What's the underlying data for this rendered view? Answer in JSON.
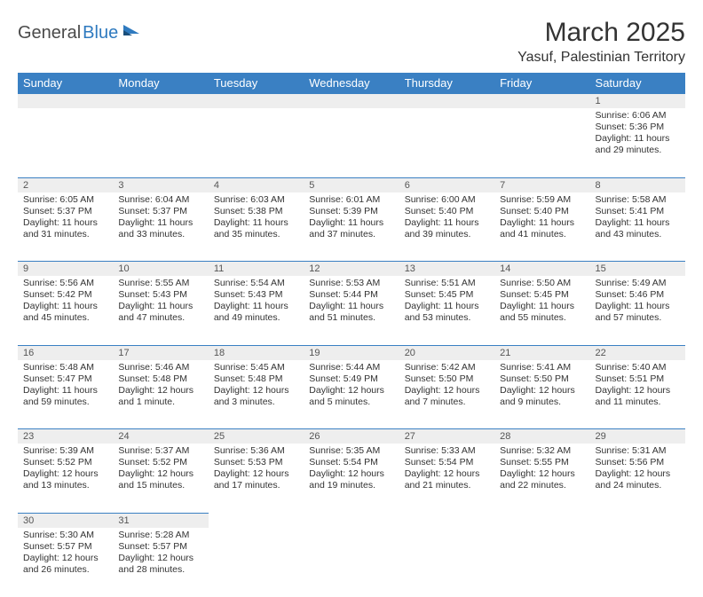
{
  "logo": {
    "dark": "General",
    "blue": "Blue"
  },
  "title": "March 2025",
  "location": "Yasuf, Palestinian Territory",
  "header_bg": "#3a80c3",
  "weekdays": [
    "Sunday",
    "Monday",
    "Tuesday",
    "Wednesday",
    "Thursday",
    "Friday",
    "Saturday"
  ],
  "weeks": [
    [
      null,
      null,
      null,
      null,
      null,
      null,
      {
        "n": "1",
        "sr": "6:06 AM",
        "ss": "5:36 PM",
        "dl": "11 hours and 29 minutes."
      }
    ],
    [
      {
        "n": "2",
        "sr": "6:05 AM",
        "ss": "5:37 PM",
        "dl": "11 hours and 31 minutes."
      },
      {
        "n": "3",
        "sr": "6:04 AM",
        "ss": "5:37 PM",
        "dl": "11 hours and 33 minutes."
      },
      {
        "n": "4",
        "sr": "6:03 AM",
        "ss": "5:38 PM",
        "dl": "11 hours and 35 minutes."
      },
      {
        "n": "5",
        "sr": "6:01 AM",
        "ss": "5:39 PM",
        "dl": "11 hours and 37 minutes."
      },
      {
        "n": "6",
        "sr": "6:00 AM",
        "ss": "5:40 PM",
        "dl": "11 hours and 39 minutes."
      },
      {
        "n": "7",
        "sr": "5:59 AM",
        "ss": "5:40 PM",
        "dl": "11 hours and 41 minutes."
      },
      {
        "n": "8",
        "sr": "5:58 AM",
        "ss": "5:41 PM",
        "dl": "11 hours and 43 minutes."
      }
    ],
    [
      {
        "n": "9",
        "sr": "5:56 AM",
        "ss": "5:42 PM",
        "dl": "11 hours and 45 minutes."
      },
      {
        "n": "10",
        "sr": "5:55 AM",
        "ss": "5:43 PM",
        "dl": "11 hours and 47 minutes."
      },
      {
        "n": "11",
        "sr": "5:54 AM",
        "ss": "5:43 PM",
        "dl": "11 hours and 49 minutes."
      },
      {
        "n": "12",
        "sr": "5:53 AM",
        "ss": "5:44 PM",
        "dl": "11 hours and 51 minutes."
      },
      {
        "n": "13",
        "sr": "5:51 AM",
        "ss": "5:45 PM",
        "dl": "11 hours and 53 minutes."
      },
      {
        "n": "14",
        "sr": "5:50 AM",
        "ss": "5:45 PM",
        "dl": "11 hours and 55 minutes."
      },
      {
        "n": "15",
        "sr": "5:49 AM",
        "ss": "5:46 PM",
        "dl": "11 hours and 57 minutes."
      }
    ],
    [
      {
        "n": "16",
        "sr": "5:48 AM",
        "ss": "5:47 PM",
        "dl": "11 hours and 59 minutes."
      },
      {
        "n": "17",
        "sr": "5:46 AM",
        "ss": "5:48 PM",
        "dl": "12 hours and 1 minute."
      },
      {
        "n": "18",
        "sr": "5:45 AM",
        "ss": "5:48 PM",
        "dl": "12 hours and 3 minutes."
      },
      {
        "n": "19",
        "sr": "5:44 AM",
        "ss": "5:49 PM",
        "dl": "12 hours and 5 minutes."
      },
      {
        "n": "20",
        "sr": "5:42 AM",
        "ss": "5:50 PM",
        "dl": "12 hours and 7 minutes."
      },
      {
        "n": "21",
        "sr": "5:41 AM",
        "ss": "5:50 PM",
        "dl": "12 hours and 9 minutes."
      },
      {
        "n": "22",
        "sr": "5:40 AM",
        "ss": "5:51 PM",
        "dl": "12 hours and 11 minutes."
      }
    ],
    [
      {
        "n": "23",
        "sr": "5:39 AM",
        "ss": "5:52 PM",
        "dl": "12 hours and 13 minutes."
      },
      {
        "n": "24",
        "sr": "5:37 AM",
        "ss": "5:52 PM",
        "dl": "12 hours and 15 minutes."
      },
      {
        "n": "25",
        "sr": "5:36 AM",
        "ss": "5:53 PM",
        "dl": "12 hours and 17 minutes."
      },
      {
        "n": "26",
        "sr": "5:35 AM",
        "ss": "5:54 PM",
        "dl": "12 hours and 19 minutes."
      },
      {
        "n": "27",
        "sr": "5:33 AM",
        "ss": "5:54 PM",
        "dl": "12 hours and 21 minutes."
      },
      {
        "n": "28",
        "sr": "5:32 AM",
        "ss": "5:55 PM",
        "dl": "12 hours and 22 minutes."
      },
      {
        "n": "29",
        "sr": "5:31 AM",
        "ss": "5:56 PM",
        "dl": "12 hours and 24 minutes."
      }
    ],
    [
      {
        "n": "30",
        "sr": "5:30 AM",
        "ss": "5:57 PM",
        "dl": "12 hours and 26 minutes."
      },
      {
        "n": "31",
        "sr": "5:28 AM",
        "ss": "5:57 PM",
        "dl": "12 hours and 28 minutes."
      },
      null,
      null,
      null,
      null,
      null
    ]
  ],
  "labels": {
    "sunrise": "Sunrise:",
    "sunset": "Sunset:",
    "daylight": "Daylight:"
  }
}
